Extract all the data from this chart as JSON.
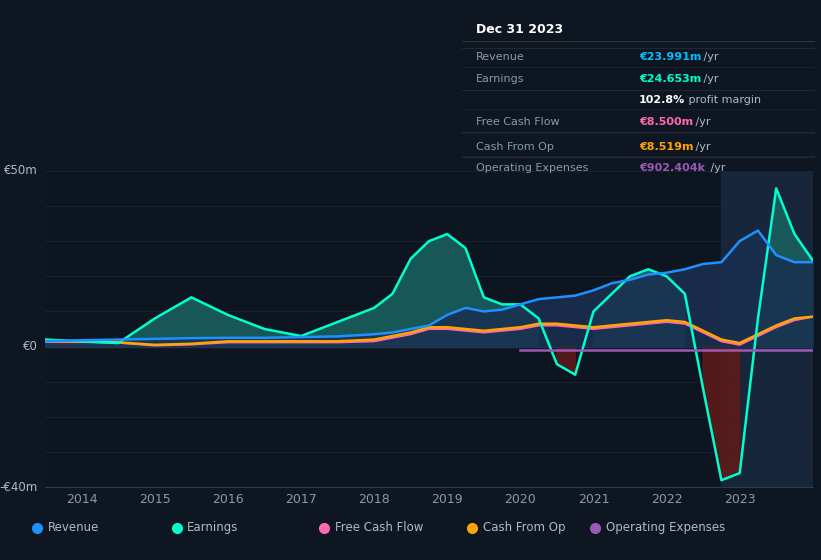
{
  "bg_color": "#0e1621",
  "plot_bg_color": "#0d1520",
  "grid_color": "#1a2535",
  "years": [
    2013.5,
    2014.0,
    2014.5,
    2015.0,
    2015.5,
    2016.0,
    2016.5,
    2017.0,
    2017.5,
    2018.0,
    2018.25,
    2018.5,
    2018.75,
    2019.0,
    2019.25,
    2019.5,
    2019.75,
    2020.0,
    2020.25,
    2020.5,
    2020.75,
    2021.0,
    2021.25,
    2021.5,
    2021.75,
    2022.0,
    2022.25,
    2022.5,
    2022.75,
    2023.0,
    2023.25,
    2023.5,
    2023.75,
    2024.0
  ],
  "revenue": [
    1.5,
    1.8,
    2.0,
    2.2,
    2.4,
    2.5,
    2.5,
    2.7,
    2.9,
    3.5,
    4.0,
    5.0,
    6.0,
    9.0,
    11.0,
    10.0,
    10.5,
    12.0,
    13.5,
    14.0,
    14.5,
    16.0,
    18.0,
    19.0,
    20.5,
    21.0,
    22.0,
    23.5,
    24.0,
    30.0,
    33.0,
    26.0,
    24.0,
    24.0
  ],
  "earnings": [
    2.0,
    1.5,
    1.0,
    8.0,
    14.0,
    9.0,
    5.0,
    3.0,
    7.0,
    11.0,
    15.0,
    25.0,
    30.0,
    32.0,
    28.0,
    14.0,
    12.0,
    12.0,
    8.0,
    -5.0,
    -8.0,
    10.0,
    15.0,
    20.0,
    22.0,
    20.0,
    15.0,
    -12.0,
    -38.0,
    -36.0,
    8.0,
    45.0,
    32.0,
    24.5
  ],
  "cash_from_op": [
    1.5,
    1.5,
    1.2,
    0.5,
    0.8,
    1.5,
    1.5,
    1.5,
    1.5,
    2.0,
    3.0,
    4.0,
    5.5,
    5.5,
    5.0,
    4.5,
    5.0,
    5.5,
    6.5,
    6.5,
    6.0,
    5.5,
    6.0,
    6.5,
    7.0,
    7.5,
    7.0,
    4.5,
    2.0,
    1.0,
    3.5,
    6.0,
    8.0,
    8.5
  ],
  "free_cash_flow": [
    1.3,
    1.3,
    1.1,
    0.3,
    0.6,
    1.2,
    1.2,
    1.2,
    1.2,
    1.5,
    2.5,
    3.5,
    5.0,
    5.0,
    4.5,
    4.0,
    4.5,
    5.0,
    6.0,
    6.0,
    5.5,
    5.0,
    5.5,
    6.0,
    6.5,
    7.0,
    6.5,
    4.0,
    1.5,
    0.5,
    3.0,
    5.5,
    7.5,
    8.5
  ],
  "operating_expenses_start_x": 2020.0,
  "operating_expenses_y": -1.0,
  "revenue_color": "#1e90ff",
  "earnings_color": "#00ffcc",
  "earnings_fill_pos_color": "#1a5f5f",
  "earnings_fill_neg_color": "#5c1a1a",
  "revenue_fill_color": "#1a3050",
  "free_cash_flow_color": "#ff69b4",
  "cash_from_op_color": "#ffa500",
  "operating_expenses_color": "#9b59b6",
  "highlight_x_start": 2022.75,
  "highlight_x_end": 2024.0,
  "highlight_color": "#1a2840",
  "ylim": [
    -40,
    50
  ],
  "xlim": [
    2013.5,
    2024.0
  ],
  "xtick_positions": [
    2014.0,
    2015.0,
    2016.0,
    2017.0,
    2018.0,
    2019.0,
    2020.0,
    2021.0,
    2022.0,
    2023.0
  ],
  "xtick_labels": [
    "2014",
    "2015",
    "2016",
    "2017",
    "2018",
    "2019",
    "2020",
    "2021",
    "2022",
    "2023"
  ],
  "ytick_positions": [
    -40,
    0,
    50
  ],
  "ytick_labels": [
    "-€40m",
    "€0",
    "€50m"
  ],
  "legend_items": [
    {
      "label": "Revenue",
      "color": "#1e90ff"
    },
    {
      "label": "Earnings",
      "color": "#00ffcc"
    },
    {
      "label": "Free Cash Flow",
      "color": "#ff69b4"
    },
    {
      "label": "Cash From Op",
      "color": "#ffa500"
    },
    {
      "label": "Operating Expenses",
      "color": "#9b59b6"
    }
  ],
  "info_box": {
    "date": "Dec 31 2023",
    "rows": [
      {
        "label": "Revenue",
        "value": "€23.991m",
        "suffix": " /yr",
        "value_color": "#00bfff",
        "label_color": "#8899aa"
      },
      {
        "label": "Earnings",
        "value": "€24.653m",
        "suffix": " /yr",
        "value_color": "#00ffcc",
        "label_color": "#8899aa"
      },
      {
        "label": "",
        "value": "102.8%",
        "suffix": " profit margin",
        "value_color": "#ffffff",
        "label_color": "#8899aa"
      },
      {
        "label": "Free Cash Flow",
        "value": "€8.500m",
        "suffix": " /yr",
        "value_color": "#ff69b4",
        "label_color": "#8899aa"
      },
      {
        "label": "Cash From Op",
        "value": "€8.519m",
        "suffix": " /yr",
        "value_color": "#ffa500",
        "label_color": "#8899aa"
      },
      {
        "label": "Operating Expenses",
        "value": "€902.404k",
        "suffix": " /yr",
        "value_color": "#9b59b6",
        "label_color": "#8899aa"
      }
    ]
  }
}
